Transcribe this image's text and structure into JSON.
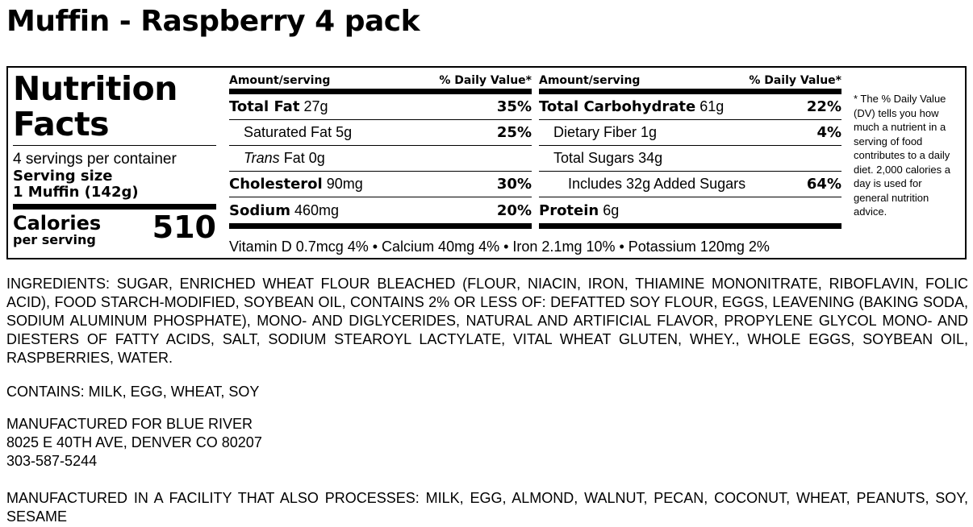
{
  "product_title": "Muffin - Raspberry 4 pack",
  "label": {
    "heading_line1": "Nutrition",
    "heading_line2": "Facts",
    "servings": "4 servings per container",
    "serving_size_label": "Serving size",
    "serving_size_value": "1 Muffin (142g)",
    "calories_label": "Calories",
    "calories_sub": "per serving",
    "calories_value": "510",
    "col_header_amount": "Amount/serving",
    "col_header_dv": "% Daily Value*",
    "left_rows": [
      {
        "name": "Total Fat",
        "amount": "27g",
        "dv": "35%"
      },
      {
        "name": "Saturated Fat",
        "amount": "5g",
        "dv": "25%"
      },
      {
        "name": "Trans",
        "amount": "Fat 0g",
        "dv": ""
      },
      {
        "name": "Cholesterol",
        "amount": "90mg",
        "dv": "30%"
      },
      {
        "name": "Sodium",
        "amount": "460mg",
        "dv": "20%"
      }
    ],
    "right_rows": [
      {
        "name": "Total Carbohydrate",
        "amount": "61g",
        "dv": "22%"
      },
      {
        "name": "Dietary Fiber",
        "amount": "1g",
        "dv": "4%"
      },
      {
        "name": "Total Sugars",
        "amount": "34g",
        "dv": ""
      },
      {
        "name": "Includes 32g Added Sugars",
        "amount": "",
        "dv": "64%"
      },
      {
        "name": "Protein",
        "amount": "6g",
        "dv": ""
      }
    ],
    "vitamins": "Vitamin D 0.7mcg 4% • Calcium 40mg 4% • Iron 2.1mg 10% • Potassium 120mg 2%",
    "footnote": "* The % Daily Value (DV) tells you how much a nutrient in a serving of food contributes to a daily diet. 2,000 calories a day is used for general nutrition advice."
  },
  "ingredients": "INGREDIENTS: SUGAR, ENRICHED WHEAT FLOUR BLEACHED (FLOUR, NIACIN, IRON, THIAMINE MONONITRATE, RIBOFLAVIN, FOLIC ACID), FOOD STARCH-MODIFIED, SOYBEAN OIL, CONTAINS 2% OR LESS OF: DEFATTED SOY FLOUR, EGGS, LEAVENING (BAKING SODA, SODIUM ALUMINUM PHOSPHATE), MONO- AND DIGLYCERIDES, NATURAL AND ARTIFICIAL FLAVOR, PROPYLENE GLYCOL MONO- AND DIESTERS OF FATTY ACIDS, SALT, SODIUM STEAROYL LACTYLATE, VITAL WHEAT GLUTEN, WHEY., WHOLE EGGS, SOYBEAN OIL, RASPBERRIES, WATER.",
  "contains": "CONTAINS: MILK, EGG, WHEAT, SOY",
  "manufacturer": {
    "line1": "MANUFACTURED FOR BLUE RIVER",
    "line2": "8025 E 40TH AVE, DENVER CO 80207",
    "line3": "303-587-5244"
  },
  "facility": "MANUFACTURED IN A FACILITY THAT ALSO PROCESSES: MILK, EGG, ALMOND, WALNUT, PECAN, COCONUT, WHEAT, PEANUTS, SOY, SESAME"
}
